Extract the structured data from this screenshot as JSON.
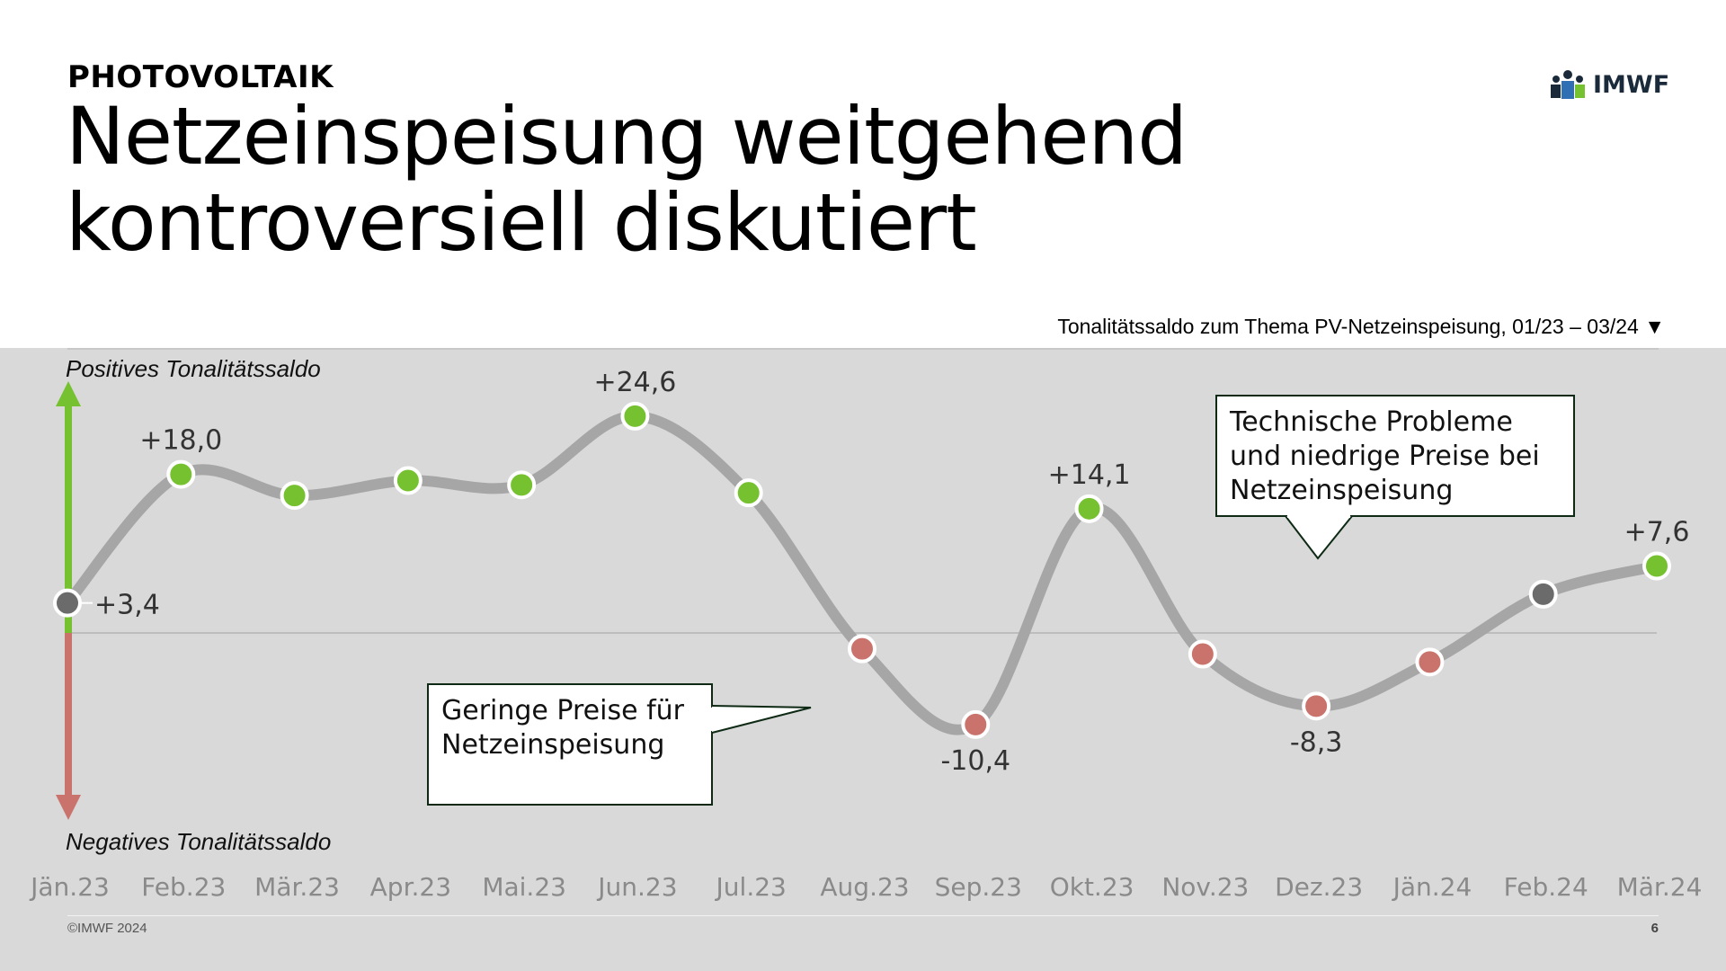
{
  "header": {
    "kicker": "PHOTOVOLTAIK",
    "title_line1": "Netzeinspeisung weitgehend",
    "title_line2": "kontroversiell diskutiert",
    "subtitle": "Tonalitätssaldo zum Thema PV-Netzeinspeisung, 01/23 – 03/24 ▼"
  },
  "logo": {
    "text": "IMWF",
    "icon": "imwf-people-icon",
    "color": "#1b2a3a"
  },
  "footer": {
    "copyright": "©IMWF 2024",
    "page": "6"
  },
  "colors": {
    "positive": "#76c12f",
    "negative": "#c9736c",
    "neutral": "#6b6b6b",
    "line": "#a6a6a6",
    "panel": "#d9d9d9"
  },
  "chart_data": {
    "type": "line",
    "categories": [
      "Jän.23",
      "Feb.23",
      "Mär.23",
      "Apr.23",
      "Mai.23",
      "Jun.23",
      "Jul.23",
      "Aug.23",
      "Sep.23",
      "Okt.23",
      "Nov.23",
      "Dez.23",
      "Jän.24",
      "Feb.24",
      "Mär.24"
    ],
    "values": [
      3.4,
      18.0,
      15.6,
      17.3,
      16.8,
      24.6,
      15.9,
      -1.8,
      -10.4,
      14.1,
      -2.4,
      -8.3,
      -3.3,
      4.4,
      7.6
    ],
    "point_status": [
      "neutral",
      "positive",
      "positive",
      "positive",
      "positive",
      "positive",
      "positive",
      "negative",
      "negative",
      "positive",
      "negative",
      "negative",
      "negative",
      "neutral",
      "positive"
    ],
    "data_labels": [
      {
        "index": 0,
        "text": "+3,4"
      },
      {
        "index": 1,
        "text": "+18,0"
      },
      {
        "index": 5,
        "text": "+24,6"
      },
      {
        "index": 8,
        "text": "-10,4"
      },
      {
        "index": 9,
        "text": "+14,1"
      },
      {
        "index": 11,
        "text": "-8,3"
      },
      {
        "index": 14,
        "text": "+7,6"
      }
    ],
    "ylim": [
      -20,
      30
    ],
    "axis_positive_label": "Positives Tonalitätssaldo",
    "axis_negative_label": "Negatives Tonalitätssaldo",
    "annotations": [
      {
        "text_lines": [
          "Technische Probleme",
          "und niedrige Preise bei",
          "Netzeinspeisung"
        ],
        "points_to_index": 11
      },
      {
        "text_lines": [
          "Geringe Preise für",
          "Netzeinspeisung"
        ],
        "points_to_index": 7
      }
    ]
  }
}
